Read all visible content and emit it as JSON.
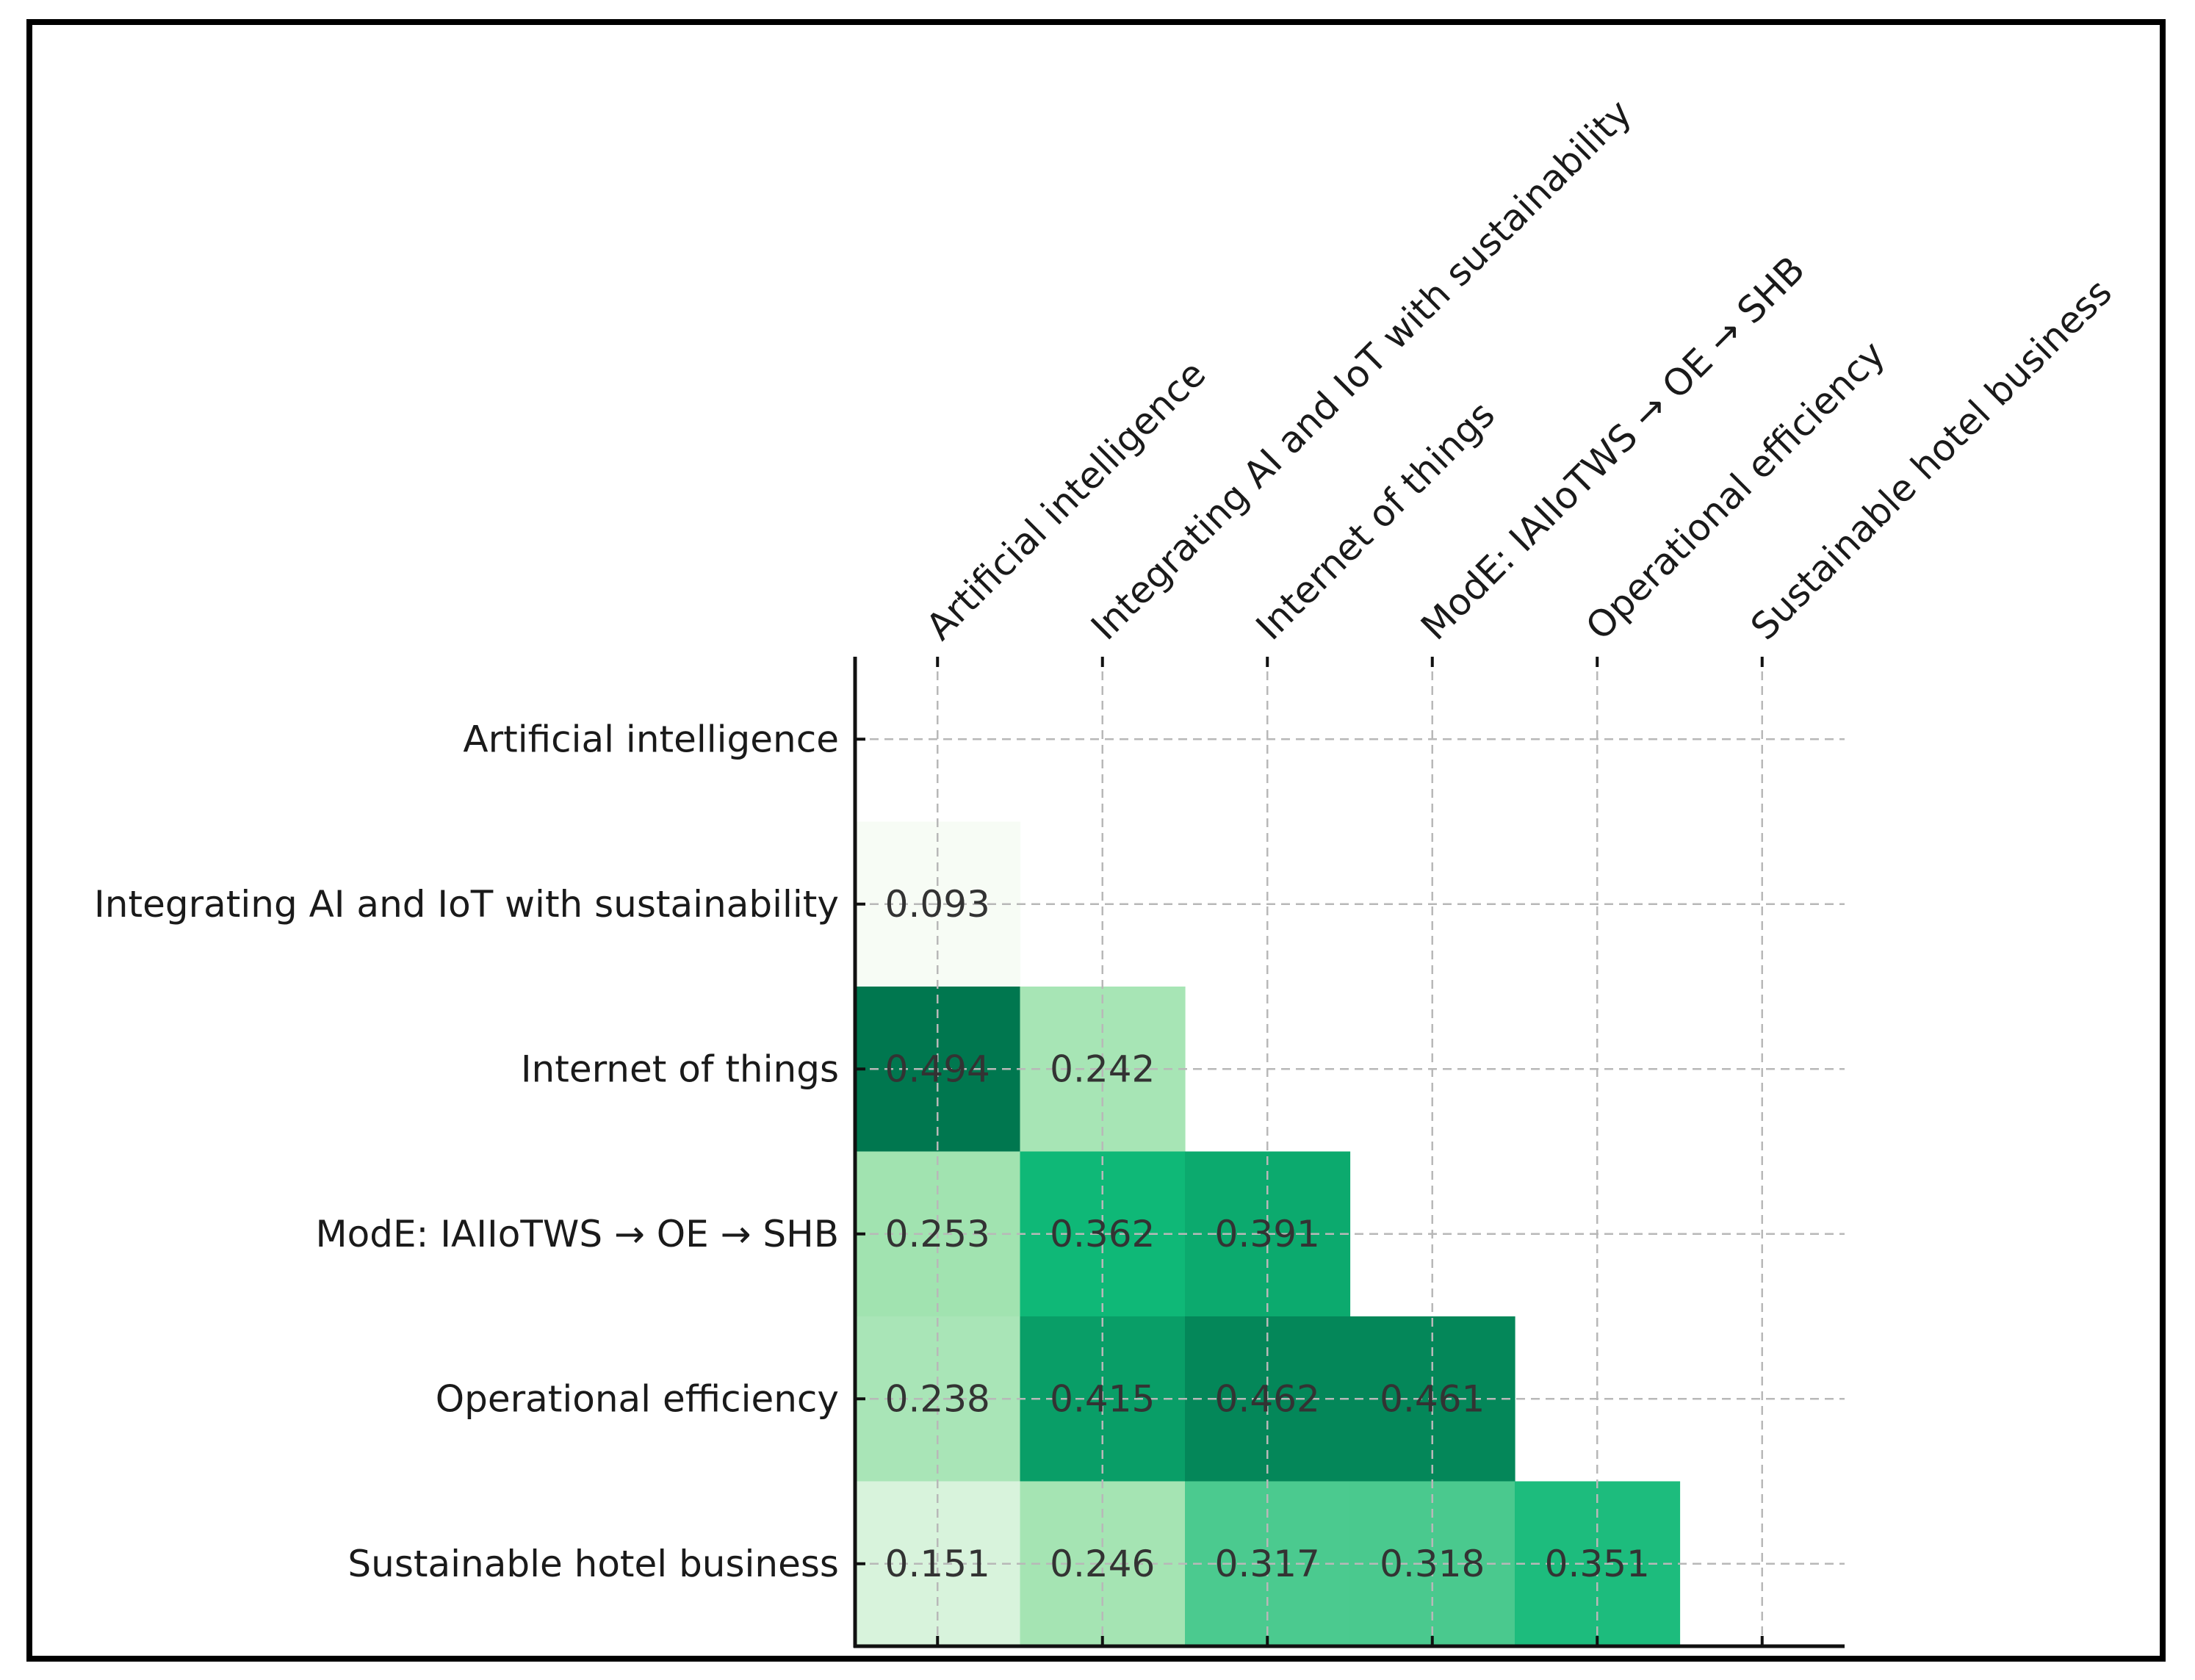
{
  "chart_data": {
    "type": "heatmap",
    "title": "",
    "xlabel": "",
    "ylabel": "",
    "x_categories": [
      "Artificial intelligence",
      "Integrating AI and IoT with sustainability",
      "Internet of things",
      "ModE: IAIIoTWS → OE → SHB",
      "Operational efficiency",
      "Sustainable hotel business"
    ],
    "y_categories": [
      "Artificial intelligence",
      "Integrating AI and IoT with sustainability",
      "Internet of things",
      "ModE: IAIIoTWS → OE → SHB",
      "Operational efficiency",
      "Sustainable hotel business"
    ],
    "matrix": [
      [
        null,
        null,
        null,
        null,
        null,
        null
      ],
      [
        0.093,
        null,
        null,
        null,
        null,
        null
      ],
      [
        0.494,
        0.242,
        null,
        null,
        null,
        null
      ],
      [
        0.253,
        0.362,
        0.391,
        null,
        null,
        null
      ],
      [
        0.238,
        0.415,
        0.462,
        0.461,
        null,
        null
      ],
      [
        0.151,
        0.246,
        0.317,
        0.318,
        0.351,
        null
      ]
    ],
    "value_labels": [
      [
        null,
        null,
        null,
        null,
        null,
        null
      ],
      [
        "0.093",
        null,
        null,
        null,
        null,
        null
      ],
      [
        "0.494",
        "0.242",
        null,
        null,
        null,
        null
      ],
      [
        "0.253",
        "0.362",
        "0.391",
        null,
        null,
        null
      ],
      [
        "0.238",
        "0.415",
        "0.462",
        "0.461",
        null,
        null
      ],
      [
        "0.151",
        "0.246",
        "0.317",
        "0.318",
        "0.351",
        null
      ]
    ],
    "colormap": "Greens",
    "value_range": [
      0.093,
      0.494
    ],
    "grid": true
  },
  "colors": {
    "low": "#f7fcf5",
    "mid_low": "#a1e3b0",
    "mid": "#0fb877",
    "high": "#00774f",
    "grid": "#b8b8b8",
    "axis": "#111111",
    "text": "#333333"
  }
}
